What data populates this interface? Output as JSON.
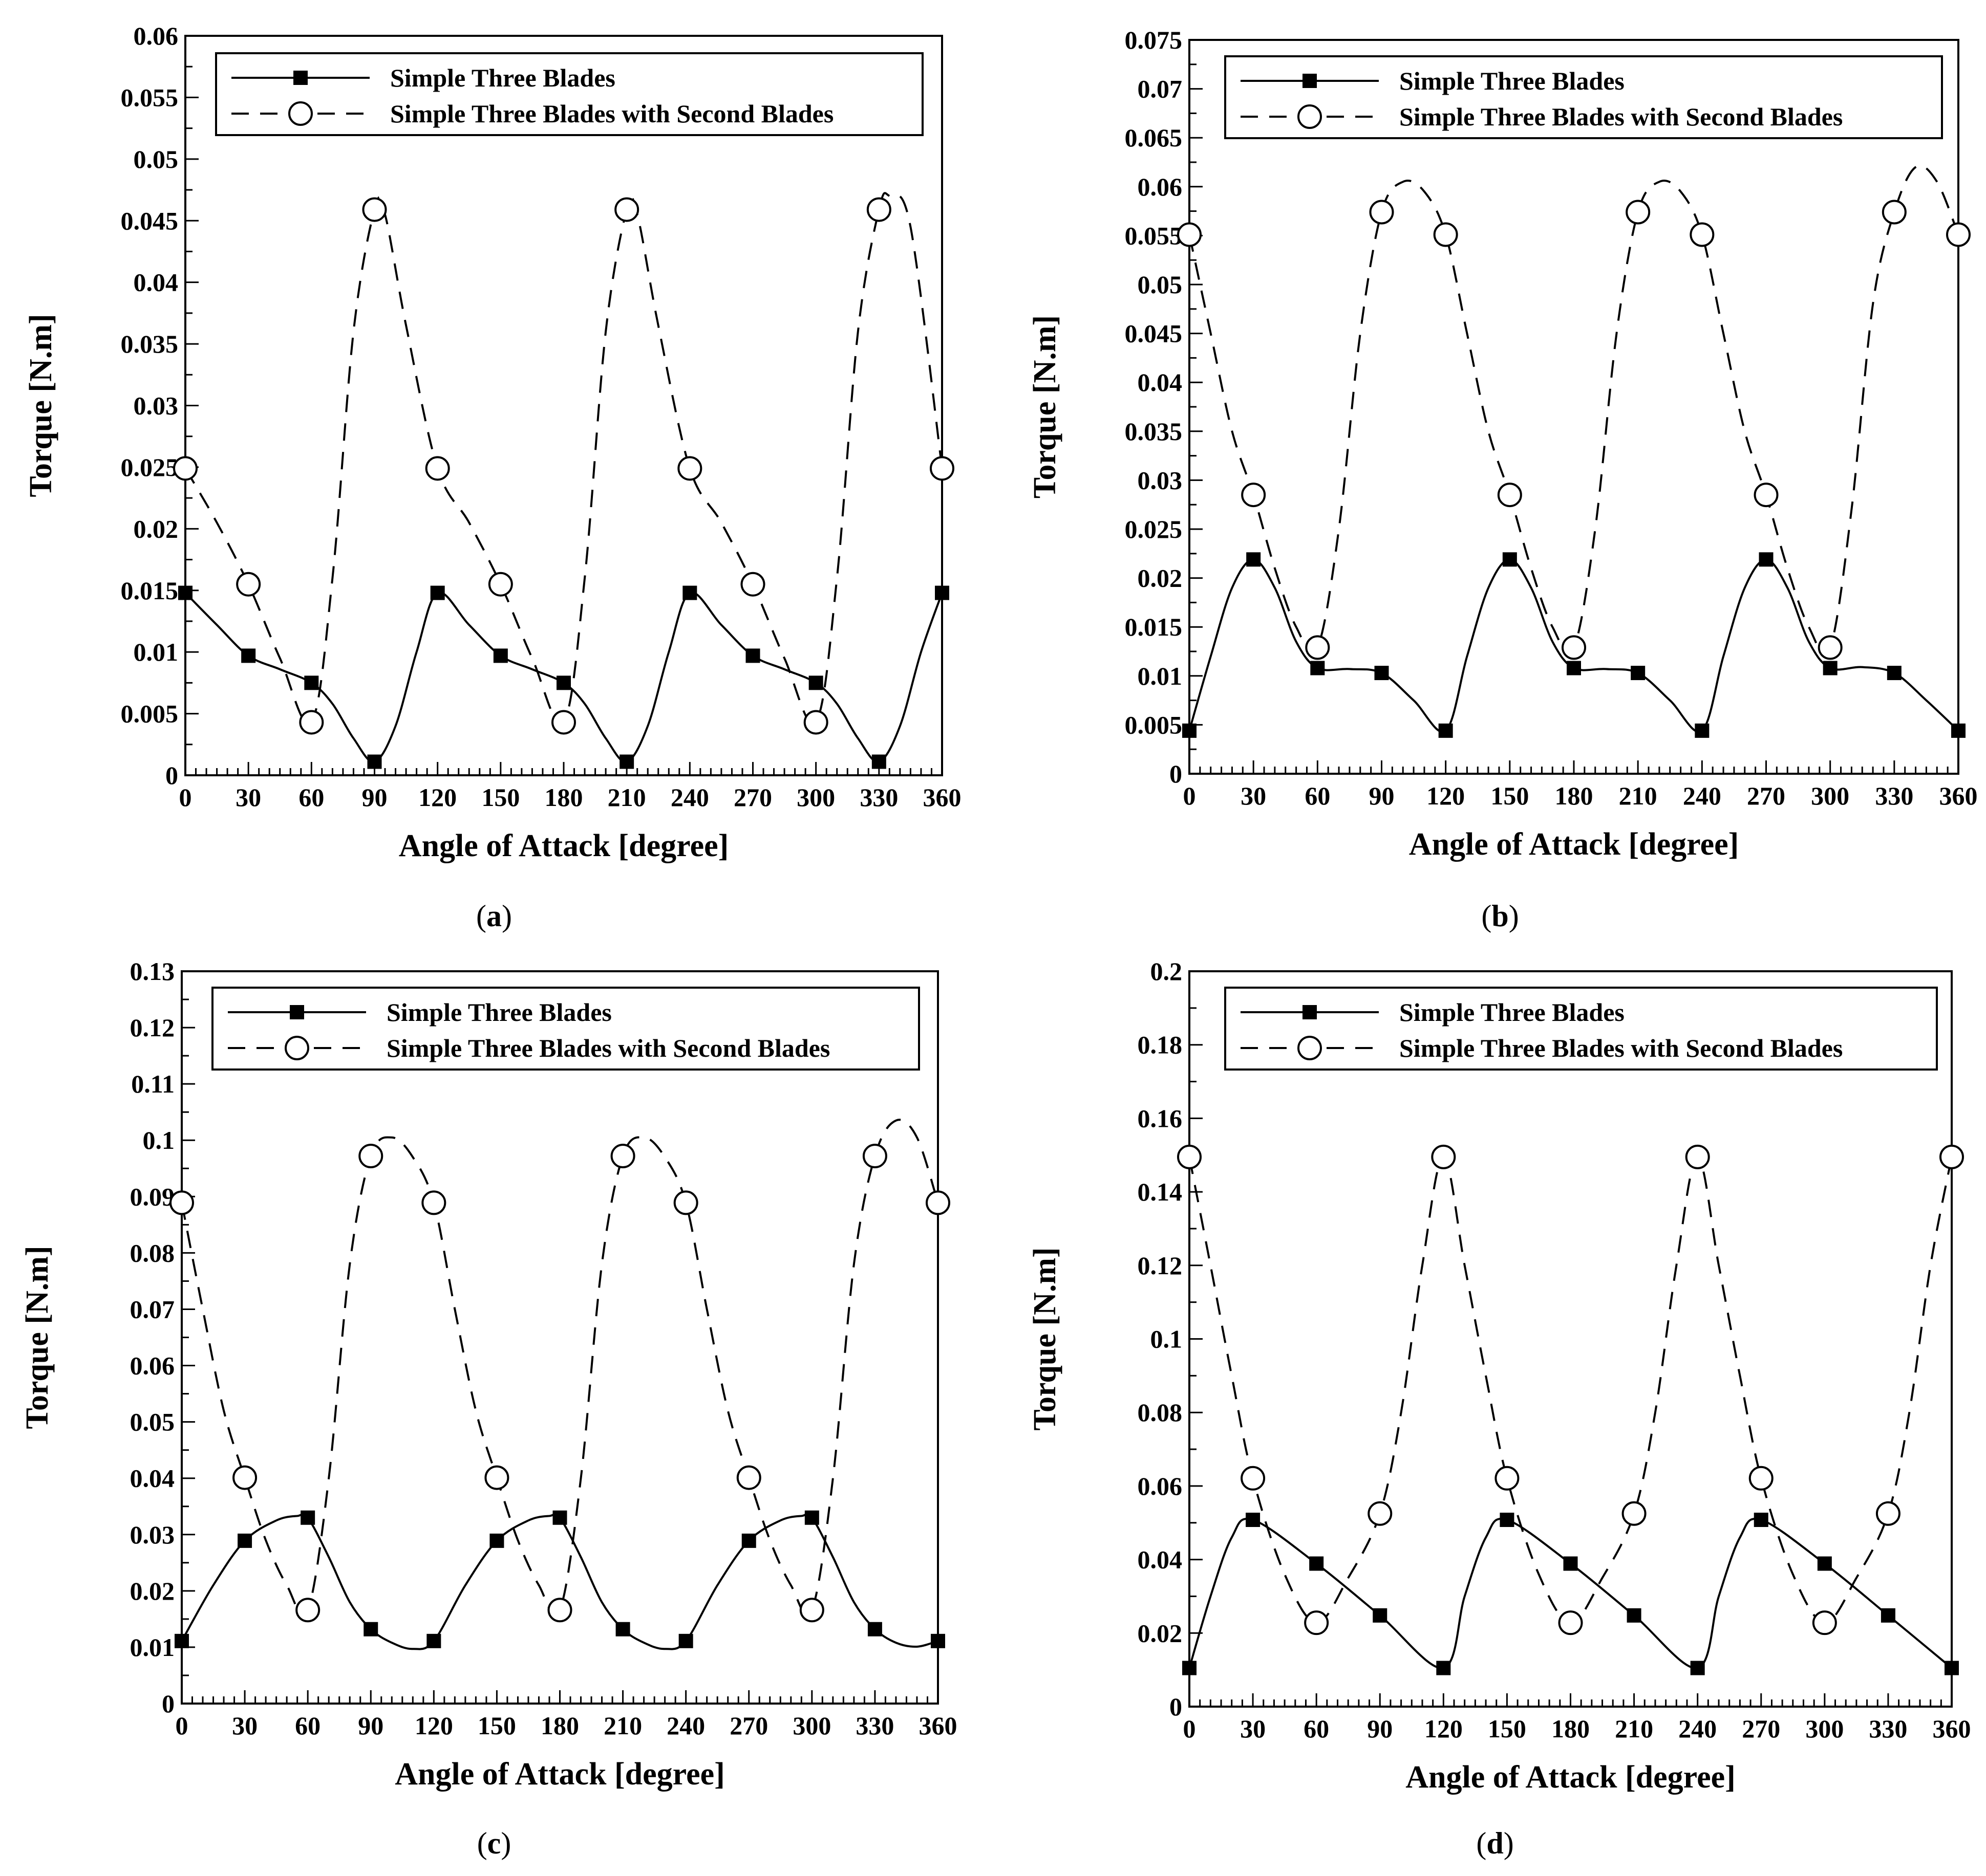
{
  "figure": {
    "legend_labels": [
      "Simple Three Blades",
      "Simple Three Blades with Second Blades"
    ]
  },
  "chart_data": [
    {
      "panel": "a",
      "caption_letter": "a",
      "type": "line",
      "xlabel": "Angle of Attack [degree]",
      "ylabel": "Torque [N.m]",
      "xlim": [
        0,
        360
      ],
      "ylim": [
        0,
        0.06
      ],
      "xticks": [
        0,
        30,
        60,
        90,
        120,
        150,
        180,
        210,
        240,
        270,
        300,
        330,
        360
      ],
      "yticks": [
        0,
        0.005,
        0.01,
        0.015,
        0.02,
        0.025,
        0.03,
        0.035,
        0.04,
        0.045,
        0.05,
        0.055,
        0.06
      ],
      "ytick_labels": [
        "0",
        "0.005",
        "0.01",
        "0.015",
        "0.02",
        "0.025",
        "0.03",
        "0.035",
        "0.04",
        "0.045",
        "0.05",
        "0.055",
        "0.06"
      ],
      "series": [
        {
          "name": "Simple Three Blades",
          "style": "solid-square",
          "x": [
            0,
            30,
            60,
            90,
            120,
            150,
            180,
            210,
            240,
            270,
            300,
            330,
            360
          ],
          "values": [
            0.0148,
            0.0097,
            0.0075,
            0.0011,
            0.0148,
            0.0097,
            0.0075,
            0.0011,
            0.0148,
            0.0097,
            0.0075,
            0.0011,
            0.0148
          ],
          "curve_x": [
            0,
            15,
            30,
            45,
            60,
            70,
            80,
            90,
            100,
            110,
            120,
            135,
            150,
            165,
            180,
            190,
            200,
            210,
            220,
            230,
            240,
            255,
            270,
            285,
            300,
            310,
            320,
            330,
            340,
            350,
            360
          ],
          "curve_y": [
            0.0148,
            0.0122,
            0.0097,
            0.0086,
            0.0075,
            0.0058,
            0.003,
            0.0011,
            0.004,
            0.01,
            0.0148,
            0.0122,
            0.0097,
            0.0086,
            0.0075,
            0.0058,
            0.003,
            0.0011,
            0.004,
            0.01,
            0.0148,
            0.0122,
            0.0097,
            0.0086,
            0.0075,
            0.0058,
            0.003,
            0.0011,
            0.004,
            0.01,
            0.0148
          ]
        },
        {
          "name": "Simple Three Blades with Second Blades",
          "style": "dashed-circle",
          "x": [
            0,
            30,
            60,
            90,
            120,
            150,
            180,
            210,
            240,
            270,
            300,
            330,
            360
          ],
          "values": [
            0.0249,
            0.0155,
            0.0043,
            0.0459,
            0.0249,
            0.0155,
            0.0043,
            0.0459,
            0.0249,
            0.0155,
            0.0043,
            0.0459,
            0.0249
          ],
          "curve_x": [
            0,
            15,
            30,
            45,
            60,
            70,
            80,
            90,
            95,
            105,
            120,
            135,
            150,
            165,
            180,
            190,
            200,
            210,
            215,
            225,
            240,
            255,
            270,
            285,
            300,
            310,
            320,
            330,
            335,
            345,
            360
          ],
          "curve_y": [
            0.0249,
            0.0205,
            0.0155,
            0.0095,
            0.0043,
            0.016,
            0.036,
            0.0459,
            0.0455,
            0.0365,
            0.0249,
            0.0205,
            0.0155,
            0.0095,
            0.0043,
            0.016,
            0.036,
            0.0459,
            0.0455,
            0.0365,
            0.0249,
            0.0205,
            0.0155,
            0.0095,
            0.0043,
            0.016,
            0.036,
            0.0459,
            0.047,
            0.0445,
            0.0249
          ]
        }
      ]
    },
    {
      "panel": "b",
      "caption_letter": "b",
      "type": "line",
      "xlabel": "Angle of Attack [degree]",
      "ylabel": "Torque [N.m]",
      "xlim": [
        0,
        360
      ],
      "ylim": [
        0,
        0.075
      ],
      "xticks": [
        0,
        30,
        60,
        90,
        120,
        150,
        180,
        210,
        240,
        270,
        300,
        330,
        360
      ],
      "yticks": [
        0,
        0.005,
        0.01,
        0.015,
        0.02,
        0.025,
        0.03,
        0.035,
        0.04,
        0.045,
        0.05,
        0.055,
        0.06,
        0.065,
        0.07,
        0.075
      ],
      "ytick_labels": [
        "0",
        "0.005",
        "0.01",
        "0.015",
        "0.02",
        "0.025",
        "0.03",
        "0.035",
        "0.04",
        "0.045",
        "0.05",
        "0.055",
        "0.06",
        "0.065",
        "0.07",
        "0.075"
      ],
      "series": [
        {
          "name": "Simple Three Blades",
          "style": "solid-square",
          "x": [
            0,
            30,
            60,
            90,
            120,
            150,
            180,
            210,
            240,
            270,
            300,
            330,
            360
          ],
          "values": [
            0.0044,
            0.0219,
            0.0108,
            0.0103,
            0.0044,
            0.0219,
            0.0108,
            0.0103,
            0.0044,
            0.0219,
            0.0108,
            0.0103,
            0.0044
          ],
          "curve_x": [
            0,
            10,
            20,
            30,
            40,
            50,
            60,
            75,
            90,
            105,
            120,
            130,
            140,
            150,
            160,
            170,
            180,
            195,
            210,
            225,
            240,
            250,
            260,
            270,
            280,
            290,
            300,
            315,
            330,
            345,
            360
          ],
          "curve_y": [
            0.0044,
            0.012,
            0.019,
            0.0219,
            0.019,
            0.0135,
            0.0108,
            0.0107,
            0.0103,
            0.0075,
            0.0044,
            0.012,
            0.019,
            0.0219,
            0.019,
            0.0135,
            0.0108,
            0.0107,
            0.0103,
            0.0075,
            0.0044,
            0.012,
            0.019,
            0.0219,
            0.019,
            0.0135,
            0.0108,
            0.0109,
            0.0103,
            0.0075,
            0.0044
          ]
        },
        {
          "name": "Simple Three Blades with Second Blades",
          "style": "dashed-circle",
          "x": [
            0,
            30,
            60,
            90,
            120,
            150,
            180,
            210,
            240,
            270,
            300,
            330,
            360
          ],
          "values": [
            0.0551,
            0.0285,
            0.0129,
            0.0574,
            0.0551,
            0.0285,
            0.0129,
            0.0574,
            0.0551,
            0.0285,
            0.0129,
            0.0574,
            0.0551
          ],
          "curve_x": [
            0,
            10,
            20,
            30,
            40,
            50,
            60,
            70,
            80,
            90,
            100,
            110,
            120,
            130,
            140,
            150,
            160,
            170,
            180,
            190,
            200,
            210,
            220,
            230,
            240,
            250,
            260,
            270,
            280,
            290,
            300,
            310,
            320,
            330,
            340,
            350,
            360
          ],
          "curve_y": [
            0.0551,
            0.045,
            0.035,
            0.0285,
            0.021,
            0.015,
            0.0129,
            0.025,
            0.045,
            0.0574,
            0.0605,
            0.0595,
            0.0551,
            0.045,
            0.035,
            0.0285,
            0.021,
            0.015,
            0.0129,
            0.025,
            0.045,
            0.0574,
            0.0605,
            0.0595,
            0.0551,
            0.045,
            0.035,
            0.0285,
            0.021,
            0.015,
            0.0129,
            0.027,
            0.048,
            0.0574,
            0.062,
            0.0605,
            0.0551
          ]
        }
      ]
    },
    {
      "panel": "c",
      "caption_letter": "c",
      "type": "line",
      "xlabel": "Angle of Attack [degree]",
      "ylabel": "Torque [N.m]",
      "xlim": [
        0,
        360
      ],
      "ylim": [
        0,
        0.13
      ],
      "xticks": [
        0,
        30,
        60,
        90,
        120,
        150,
        180,
        210,
        240,
        270,
        300,
        330,
        360
      ],
      "yticks": [
        0,
        0.01,
        0.02,
        0.03,
        0.04,
        0.05,
        0.06,
        0.07,
        0.08,
        0.09,
        0.1,
        0.11,
        0.12,
        0.13
      ],
      "ytick_labels": [
        "0",
        "0.01",
        "0.02",
        "0.03",
        "0.04",
        "0.05",
        "0.06",
        "0.07",
        "0.08",
        "0.09",
        "0.1",
        "0.11",
        "0.12",
        "0.13"
      ],
      "series": [
        {
          "name": "Simple Three Blades",
          "style": "solid-square",
          "x": [
            0,
            30,
            60,
            90,
            120,
            150,
            180,
            210,
            240,
            270,
            300,
            330,
            360
          ],
          "values": [
            0.0111,
            0.0289,
            0.033,
            0.0132,
            0.0111,
            0.0289,
            0.033,
            0.0132,
            0.0111,
            0.0289,
            0.033,
            0.0132,
            0.0111
          ],
          "curve_x": [
            0,
            15,
            30,
            45,
            55,
            60,
            70,
            80,
            90,
            100,
            110,
            120,
            135,
            150,
            165,
            175,
            180,
            190,
            200,
            210,
            220,
            230,
            240,
            255,
            270,
            285,
            295,
            300,
            310,
            320,
            330,
            340,
            350,
            360
          ],
          "curve_y": [
            0.0111,
            0.021,
            0.0289,
            0.0325,
            0.0333,
            0.033,
            0.026,
            0.018,
            0.0132,
            0.0108,
            0.0097,
            0.0111,
            0.021,
            0.0289,
            0.0325,
            0.0333,
            0.033,
            0.026,
            0.018,
            0.0132,
            0.0108,
            0.0097,
            0.0111,
            0.021,
            0.0289,
            0.0325,
            0.0333,
            0.033,
            0.026,
            0.018,
            0.0132,
            0.0108,
            0.0101,
            0.0111
          ]
        },
        {
          "name": "Simple Three Blades with Second Blades",
          "style": "dashed-circle",
          "x": [
            0,
            30,
            60,
            90,
            120,
            150,
            180,
            210,
            240,
            270,
            300,
            330,
            360
          ],
          "values": [
            0.0889,
            0.0401,
            0.0166,
            0.0972,
            0.0889,
            0.0401,
            0.0166,
            0.0972,
            0.0889,
            0.0401,
            0.0166,
            0.0972,
            0.0889
          ],
          "curve_x": [
            0,
            10,
            20,
            30,
            40,
            50,
            60,
            70,
            80,
            90,
            100,
            110,
            120,
            130,
            140,
            150,
            160,
            170,
            180,
            190,
            200,
            210,
            220,
            230,
            240,
            250,
            260,
            270,
            280,
            290,
            300,
            310,
            320,
            330,
            340,
            350,
            360
          ],
          "curve_y": [
            0.0889,
            0.07,
            0.052,
            0.0401,
            0.029,
            0.021,
            0.0166,
            0.04,
            0.078,
            0.0972,
            0.1005,
            0.097,
            0.0889,
            0.07,
            0.052,
            0.0401,
            0.029,
            0.021,
            0.0166,
            0.04,
            0.078,
            0.0972,
            0.1005,
            0.097,
            0.0889,
            0.07,
            0.052,
            0.0401,
            0.029,
            0.021,
            0.0166,
            0.04,
            0.078,
            0.0972,
            0.1035,
            0.1005,
            0.0889
          ]
        }
      ]
    },
    {
      "panel": "d",
      "caption_letter": "d",
      "type": "line",
      "xlabel": "Angle of Attack [degree]",
      "ylabel": "Torque [N.m]",
      "xlim": [
        0,
        360
      ],
      "ylim": [
        0,
        0.2
      ],
      "xticks": [
        0,
        30,
        60,
        90,
        120,
        150,
        180,
        210,
        240,
        270,
        300,
        330,
        360
      ],
      "yticks": [
        0,
        0.02,
        0.04,
        0.06,
        0.08,
        0.1,
        0.12,
        0.14,
        0.16,
        0.18,
        0.2
      ],
      "ytick_labels": [
        "0",
        "0.02",
        "0.04",
        "0.06",
        "0.08",
        "0.1",
        "0.12",
        "0.14",
        "0.16",
        "0.18",
        "0.2"
      ],
      "series": [
        {
          "name": "Simple Three Blades",
          "style": "solid-square",
          "x": [
            0,
            30,
            60,
            90,
            120,
            150,
            180,
            210,
            240,
            270,
            300,
            330,
            360
          ],
          "values": [
            0.0105,
            0.0508,
            0.0389,
            0.0248,
            0.0105,
            0.0508,
            0.0389,
            0.0248,
            0.0105,
            0.0508,
            0.0389,
            0.0248,
            0.0105
          ],
          "curve_x": [
            0,
            10,
            20,
            30,
            60,
            90,
            120,
            130,
            140,
            150,
            180,
            210,
            240,
            250,
            260,
            270,
            300,
            330,
            360
          ],
          "curve_y": [
            0.0105,
            0.03,
            0.046,
            0.0508,
            0.0389,
            0.0248,
            0.0105,
            0.03,
            0.046,
            0.0508,
            0.0389,
            0.0248,
            0.0105,
            0.03,
            0.046,
            0.0508,
            0.0389,
            0.0248,
            0.0105
          ]
        },
        {
          "name": "Simple Three Blades with Second Blades",
          "style": "dashed-circle",
          "x": [
            0,
            30,
            60,
            90,
            120,
            150,
            180,
            210,
            240,
            270,
            300,
            330,
            360
          ],
          "values": [
            0.1495,
            0.0621,
            0.0228,
            0.0525,
            0.1495,
            0.0621,
            0.0228,
            0.0525,
            0.1495,
            0.0621,
            0.0228,
            0.0525,
            0.1495
          ],
          "curve_x": [
            0,
            10,
            20,
            30,
            45,
            60,
            75,
            90,
            100,
            110,
            120,
            130,
            140,
            150,
            165,
            180,
            195,
            210,
            220,
            230,
            240,
            250,
            260,
            270,
            285,
            300,
            315,
            330,
            340,
            350,
            360
          ],
          "curve_y": [
            0.1495,
            0.12,
            0.09,
            0.0621,
            0.036,
            0.0228,
            0.035,
            0.0525,
            0.08,
            0.12,
            0.1495,
            0.12,
            0.09,
            0.0621,
            0.036,
            0.0228,
            0.035,
            0.0525,
            0.08,
            0.12,
            0.1495,
            0.12,
            0.09,
            0.0621,
            0.036,
            0.0228,
            0.035,
            0.0525,
            0.08,
            0.12,
            0.1495
          ]
        }
      ]
    }
  ]
}
